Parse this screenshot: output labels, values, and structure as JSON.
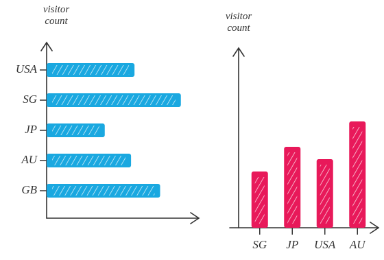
{
  "chart_data": [
    {
      "type": "hbar",
      "y_label": "visitor count",
      "categories": [
        "USA",
        "SG",
        "JP",
        "AU",
        "GB"
      ],
      "values": [
        127,
        194,
        84,
        122,
        164
      ],
      "color": "#1aa8e0",
      "xlim": [
        0,
        220
      ]
    },
    {
      "type": "bar",
      "y_label": "visitor count",
      "categories": [
        "SG",
        "JP",
        "USA",
        "AU"
      ],
      "values": [
        82,
        118,
        100,
        155
      ],
      "color": "#e8195a",
      "ylim": [
        0,
        260
      ]
    }
  ]
}
